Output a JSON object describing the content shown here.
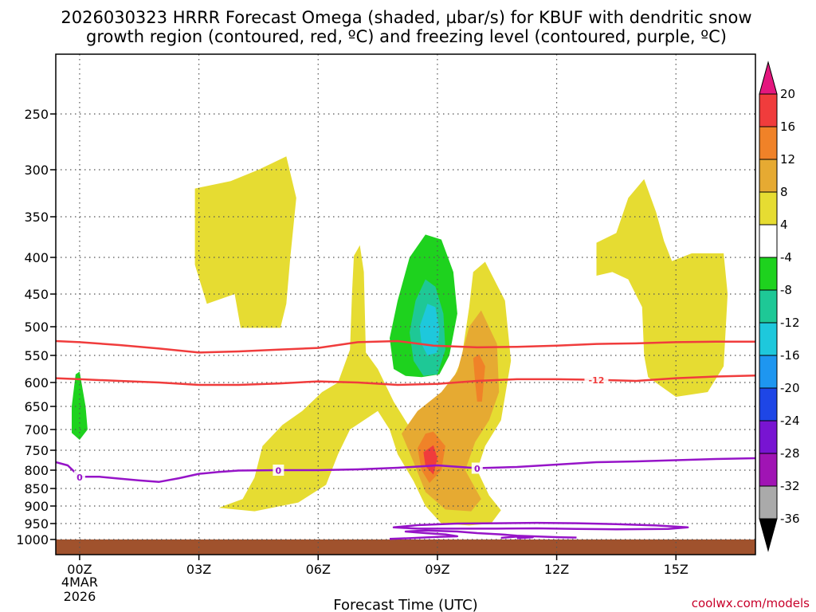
{
  "title_line1": "2026030323 HRRR Forecast Omega (shaded, µbar/s) for KBUF with dendritic snow",
  "title_line2": "growth region (contoured, red, ºC) and freezing level (contoured, purple, ºC)",
  "credit": "coolwx.com/models",
  "chart_data": {
    "type": "area",
    "xlabel": "Forecast Time (UTC)",
    "ylabel": "",
    "x_range_hours": [
      -0.6,
      17.0
    ],
    "y_range_hpa": [
      200,
      1020
    ],
    "grid": true,
    "legend_placement": "right",
    "x_ticks": [
      {
        "hour": 0,
        "label": "00Z",
        "sub1": "4MAR",
        "sub2": "2026"
      },
      {
        "hour": 3,
        "label": "03Z"
      },
      {
        "hour": 6,
        "label": "06Z"
      },
      {
        "hour": 9,
        "label": "09Z"
      },
      {
        "hour": 12,
        "label": "12Z"
      },
      {
        "hour": 15,
        "label": "15Z"
      }
    ],
    "y_ticks": [
      {
        "p": 250,
        "label": "250"
      },
      {
        "p": 300,
        "label": "300"
      },
      {
        "p": 350,
        "label": "350"
      },
      {
        "p": 400,
        "label": "400"
      },
      {
        "p": 450,
        "label": "450"
      },
      {
        "p": 500,
        "label": "500"
      },
      {
        "p": 550,
        "label": "550"
      },
      {
        "p": 600,
        "label": "600"
      },
      {
        "p": 650,
        "label": "650"
      },
      {
        "p": 700,
        "label": "700"
      },
      {
        "p": 750,
        "label": "750"
      },
      {
        "p": 800,
        "label": "800"
      },
      {
        "p": 850,
        "label": "850"
      },
      {
        "p": 900,
        "label": "900"
      },
      {
        "p": 950,
        "label": "950"
      },
      {
        "p": 1000,
        "label": "1000"
      }
    ],
    "colorbar": {
      "levels": [
        {
          "label": "20",
          "color": "#e4177e"
        },
        {
          "label": "16",
          "color": "#f03c3c"
        },
        {
          "label": "12",
          "color": "#f08228"
        },
        {
          "label": "8",
          "color": "#e6aa32"
        },
        {
          "label": "4",
          "color": "#e6dc32"
        },
        {
          "label": "-4",
          "color": "#ffffff"
        },
        {
          "label": "-8",
          "color": "#1ed21e"
        },
        {
          "label": "-12",
          "color": "#1ec896"
        },
        {
          "label": "-16",
          "color": "#1ec8dc"
        },
        {
          "label": "-20",
          "color": "#1e96f0"
        },
        {
          "label": "-24",
          "color": "#1e46e6"
        },
        {
          "label": "-28",
          "color": "#7814d2"
        },
        {
          "label": "-32",
          "color": "#a014b4"
        },
        {
          "label": "-36",
          "color": "#aaaaaa"
        }
      ],
      "below_color": "#000000"
    },
    "surface": {
      "p_top": 1000,
      "color": "#a0522d"
    },
    "omega_regions": [
      {
        "level": 4,
        "color": "#e6dc32",
        "points": [
          [
            2.9,
            320
          ],
          [
            3.8,
            312
          ],
          [
            4.5,
            300
          ],
          [
            5.2,
            288
          ],
          [
            5.45,
            330
          ],
          [
            5.3,
            400
          ],
          [
            5.2,
            465
          ],
          [
            5.05,
            502
          ],
          [
            4.05,
            502
          ],
          [
            3.9,
            450
          ],
          [
            3.2,
            465
          ],
          [
            2.9,
            410
          ]
        ]
      },
      {
        "level": 4,
        "color": "#e6dc32",
        "points": [
          [
            6.9,
            398
          ],
          [
            7.05,
            385
          ],
          [
            7.15,
            420
          ],
          [
            7.2,
            545
          ],
          [
            7.5,
            575
          ],
          [
            7.9,
            640
          ],
          [
            8.3,
            695
          ],
          [
            8.6,
            680
          ],
          [
            8.9,
            640
          ],
          [
            9.3,
            610
          ],
          [
            9.6,
            560
          ],
          [
            9.8,
            470
          ],
          [
            9.9,
            420
          ],
          [
            10.2,
            406
          ],
          [
            10.7,
            460
          ],
          [
            10.85,
            560
          ],
          [
            10.6,
            680
          ],
          [
            10.2,
            740
          ],
          [
            10,
            800
          ],
          [
            10.3,
            870
          ],
          [
            10.6,
            912
          ],
          [
            10.35,
            950
          ],
          [
            9.8,
            956
          ],
          [
            9.1,
            950
          ],
          [
            8.7,
            900
          ],
          [
            8.4,
            830
          ],
          [
            8,
            760
          ],
          [
            7.8,
            700
          ],
          [
            7.5,
            660
          ],
          [
            6.8,
            700
          ],
          [
            6.5,
            760
          ],
          [
            6.2,
            840
          ],
          [
            5.5,
            890
          ],
          [
            4.4,
            915
          ],
          [
            3.5,
            905
          ],
          [
            4.1,
            880
          ],
          [
            4.4,
            820
          ],
          [
            4.6,
            740
          ],
          [
            5.1,
            690
          ],
          [
            5.6,
            660
          ],
          [
            6.1,
            620
          ],
          [
            6.5,
            600
          ],
          [
            6.8,
            540
          ],
          [
            6.85,
            450
          ]
        ]
      },
      {
        "level": 4,
        "color": "#e6dc32",
        "points": [
          [
            13,
            382
          ],
          [
            13.5,
            370
          ],
          [
            13.8,
            330
          ],
          [
            14.2,
            310
          ],
          [
            14.5,
            345
          ],
          [
            14.7,
            380
          ],
          [
            14.9,
            405
          ],
          [
            15.4,
            395
          ],
          [
            16.2,
            395
          ],
          [
            16.3,
            450
          ],
          [
            16.2,
            570
          ],
          [
            15.8,
            620
          ],
          [
            15,
            630
          ],
          [
            14.3,
            590
          ],
          [
            14.2,
            550
          ],
          [
            14.15,
            470
          ],
          [
            13.8,
            430
          ],
          [
            13.4,
            420
          ],
          [
            13,
            425
          ]
        ]
      },
      {
        "level": 8,
        "color": "#e6aa32",
        "points": [
          [
            8.1,
            710
          ],
          [
            8.5,
            660
          ],
          [
            9.1,
            620
          ],
          [
            9.5,
            580
          ],
          [
            9.8,
            500
          ],
          [
            10.1,
            475
          ],
          [
            10.5,
            530
          ],
          [
            10.55,
            620
          ],
          [
            10.3,
            680
          ],
          [
            9.95,
            730
          ],
          [
            9.7,
            800
          ],
          [
            10.1,
            880
          ],
          [
            9.85,
            915
          ],
          [
            9.2,
            910
          ],
          [
            8.7,
            860
          ],
          [
            8.4,
            780
          ]
        ]
      },
      {
        "level": 12,
        "color": "#f08228",
        "points": [
          [
            8.5,
            745
          ],
          [
            8.7,
            710
          ],
          [
            8.9,
            705
          ],
          [
            9.2,
            740
          ],
          [
            9.1,
            800
          ],
          [
            8.8,
            835
          ],
          [
            8.6,
            800
          ]
        ]
      },
      {
        "level": 12,
        "color": "#f08228",
        "points": [
          [
            9.9,
            555
          ],
          [
            10.05,
            548
          ],
          [
            10.2,
            570
          ],
          [
            10.12,
            640
          ],
          [
            10.0,
            640
          ],
          [
            9.95,
            600
          ]
        ]
      },
      {
        "level": 16,
        "color": "#f03c3c",
        "points": [
          [
            8.65,
            755
          ],
          [
            8.9,
            738
          ],
          [
            9.0,
            770
          ],
          [
            8.9,
            812
          ],
          [
            8.7,
            790
          ]
        ]
      },
      {
        "level": -4,
        "color": "#1ed21e",
        "points": [
          [
            -0.2,
            650
          ],
          [
            -0.1,
            585
          ],
          [
            0,
            580
          ],
          [
            0.15,
            650
          ],
          [
            0.2,
            700
          ],
          [
            0,
            725
          ],
          [
            -0.2,
            708
          ]
        ]
      },
      {
        "level": -4,
        "color": "#1ed21e",
        "points": [
          [
            7.8,
            520
          ],
          [
            8,
            460
          ],
          [
            8.3,
            400
          ],
          [
            8.7,
            372
          ],
          [
            9.1,
            378
          ],
          [
            9.4,
            420
          ],
          [
            9.5,
            480
          ],
          [
            9.3,
            550
          ],
          [
            9.05,
            585
          ],
          [
            8.6,
            590
          ],
          [
            8.2,
            588
          ],
          [
            7.9,
            575
          ]
        ]
      },
      {
        "level": -8,
        "color": "#1ec896",
        "points": [
          [
            8.3,
            510
          ],
          [
            8.45,
            460
          ],
          [
            8.7,
            430
          ],
          [
            8.95,
            440
          ],
          [
            9.15,
            480
          ],
          [
            9.2,
            540
          ],
          [
            9.0,
            585
          ],
          [
            8.65,
            588
          ],
          [
            8.4,
            560
          ]
        ]
      },
      {
        "level": -12,
        "color": "#1ec8dc",
        "points": [
          [
            8.55,
            500
          ],
          [
            8.75,
            465
          ],
          [
            8.95,
            470
          ],
          [
            9.05,
            505
          ],
          [
            9.0,
            545
          ],
          [
            8.75,
            550
          ],
          [
            8.6,
            530
          ]
        ]
      }
    ],
    "dgz_contours": [
      {
        "label": "",
        "color": "#f03c3c",
        "points": [
          [
            -0.6,
            525
          ],
          [
            0,
            527
          ],
          [
            1,
            532
          ],
          [
            2,
            538
          ],
          [
            3,
            545
          ],
          [
            4,
            543
          ],
          [
            5,
            540
          ],
          [
            6,
            537
          ],
          [
            7,
            527
          ],
          [
            8,
            525
          ],
          [
            8.9,
            533
          ],
          [
            10,
            536
          ],
          [
            11,
            535
          ],
          [
            12,
            533
          ],
          [
            13,
            530
          ],
          [
            14,
            529
          ],
          [
            15,
            527
          ],
          [
            16,
            526
          ],
          [
            17,
            526
          ]
        ]
      },
      {
        "label": "-12",
        "label_at": 13,
        "color": "#f03c3c",
        "points": [
          [
            -0.6,
            592
          ],
          [
            0,
            594
          ],
          [
            1,
            597
          ],
          [
            2,
            600
          ],
          [
            3,
            605
          ],
          [
            4,
            605
          ],
          [
            5,
            602
          ],
          [
            6,
            598
          ],
          [
            7,
            600
          ],
          [
            8,
            605
          ],
          [
            9,
            603
          ],
          [
            10,
            597
          ],
          [
            11,
            594
          ],
          [
            12,
            594
          ],
          [
            13,
            595
          ],
          [
            14,
            597
          ],
          [
            15,
            592
          ],
          [
            16,
            589
          ],
          [
            17,
            587
          ]
        ]
      }
    ],
    "freezing_contours": [
      {
        "label": "0",
        "label_at": 0,
        "color": "#9614c8",
        "points": [
          [
            -0.6,
            780
          ],
          [
            -0.3,
            788
          ],
          [
            0,
            818
          ],
          [
            0.5,
            818
          ],
          [
            1,
            823
          ],
          [
            1.5,
            828
          ],
          [
            2,
            832
          ],
          [
            2.5,
            822
          ],
          [
            3,
            810
          ],
          [
            3.5,
            805
          ],
          [
            4,
            801
          ],
          [
            5,
            800
          ],
          [
            6,
            800
          ],
          [
            7,
            798
          ],
          [
            8,
            794
          ],
          [
            9,
            788
          ],
          [
            10,
            795
          ],
          [
            11,
            792
          ],
          [
            12,
            786
          ],
          [
            13,
            780
          ],
          [
            14,
            778
          ],
          [
            15,
            775
          ],
          [
            16,
            772
          ],
          [
            17,
            770
          ]
        ]
      },
      {
        "label": "0",
        "label_at": 5,
        "color": "#9614c8",
        "points": []
      },
      {
        "label": "0",
        "label_at": 10,
        "color": "#9614c8",
        "points": []
      },
      {
        "label": "",
        "color": "#9614c8",
        "closed": true,
        "points": [
          [
            7.9,
            962
          ],
          [
            8.5,
            955
          ],
          [
            9.5,
            950
          ],
          [
            10.5,
            949
          ],
          [
            11.5,
            948
          ],
          [
            12.5,
            949
          ],
          [
            13.5,
            952
          ],
          [
            14.5,
            956
          ],
          [
            15.3,
            962
          ],
          [
            14.8,
            967
          ],
          [
            13.5,
            968
          ],
          [
            12.5,
            967
          ],
          [
            11.5,
            965
          ],
          [
            10.5,
            966
          ],
          [
            9.3,
            966
          ],
          [
            8.5,
            966
          ]
        ]
      },
      {
        "label": "",
        "color": "#9614c8",
        "points": [
          [
            7.8,
            998
          ],
          [
            8.3,
            996
          ],
          [
            9,
            992
          ],
          [
            9.5,
            990
          ],
          [
            9.2,
            984
          ],
          [
            8.7,
            980
          ],
          [
            8.2,
            975
          ],
          [
            8.7,
            972
          ],
          [
            9.5,
            975
          ],
          [
            10,
            980
          ],
          [
            10.6,
            984
          ],
          [
            11,
            988
          ],
          [
            11.6,
            991
          ],
          [
            12.1,
            993
          ],
          [
            12.5,
            994
          ]
        ]
      },
      {
        "label": "",
        "color": "#9614c8",
        "points": [
          [
            10.6,
            995
          ],
          [
            11.0,
            991
          ],
          [
            11.4,
            993
          ],
          [
            11.0,
            996
          ]
        ]
      }
    ]
  }
}
